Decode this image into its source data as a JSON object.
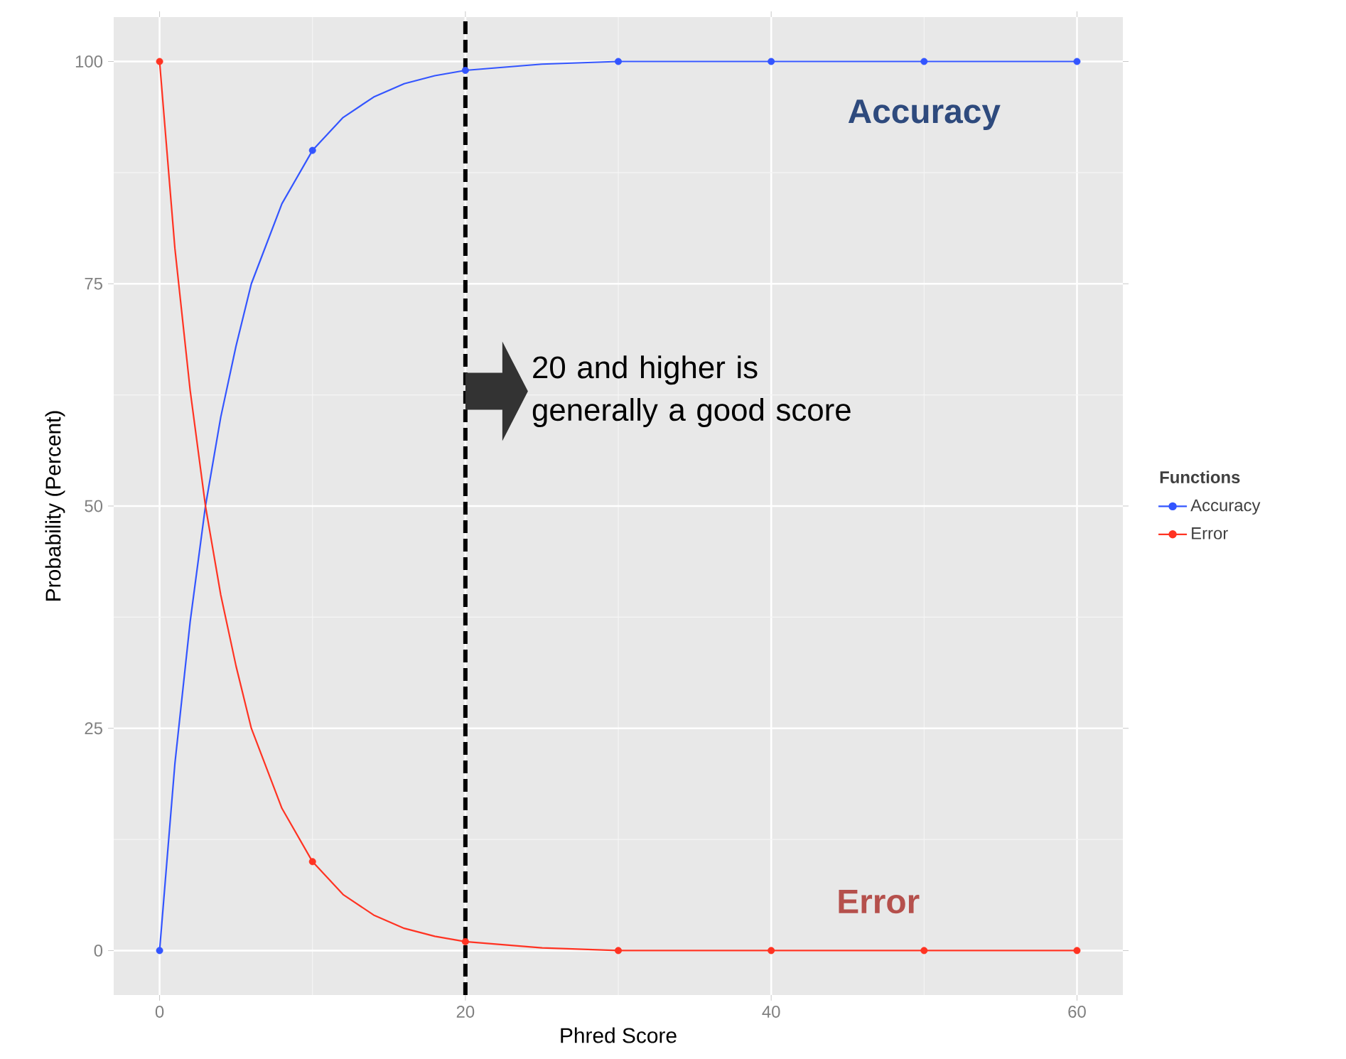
{
  "chart_data": {
    "type": "line",
    "xlabel": "Phred Score",
    "ylabel": "Probability (Percent)",
    "legend_title": "Functions",
    "legend": "right",
    "grid": true,
    "xlim": [
      -3,
      63
    ],
    "ylim": [
      -5,
      105
    ],
    "xticks": [
      0,
      20,
      40,
      60
    ],
    "yticks": [
      0,
      25,
      50,
      75,
      100
    ],
    "series": [
      {
        "name": "Accuracy",
        "color": "#3355ff",
        "marker": "none",
        "x": [
          0,
          1,
          2,
          3,
          4,
          5,
          6,
          8,
          10,
          12,
          14,
          16,
          18,
          20,
          25,
          30,
          40,
          50,
          60
        ],
        "values": [
          0,
          21,
          37,
          50,
          60,
          68,
          75,
          84,
          90,
          93.7,
          96,
          97.5,
          98.4,
          99,
          99.7,
          100,
          100,
          100,
          100
        ]
      },
      {
        "name": "Error",
        "color": "#ff3322",
        "marker": "none",
        "x": [
          0,
          1,
          2,
          3,
          4,
          5,
          6,
          8,
          10,
          12,
          14,
          16,
          18,
          20,
          25,
          30,
          40,
          50,
          60
        ],
        "values": [
          100,
          79,
          63,
          50,
          40,
          32,
          25,
          16,
          10,
          6.3,
          4,
          2.5,
          1.6,
          1,
          0.3,
          0,
          0,
          0,
          0
        ]
      },
      {
        "type": "scatter",
        "color": "#3355ff",
        "marker": "circle",
        "x": [
          0,
          10,
          20,
          30,
          40,
          50,
          60
        ],
        "values": [
          0,
          90,
          99,
          100,
          100,
          100,
          100
        ]
      },
      {
        "type": "scatter",
        "color": "#ff3322",
        "marker": "circle",
        "x": [
          0,
          10,
          20,
          30,
          40,
          50,
          60
        ],
        "values": [
          100,
          10,
          1,
          0,
          0,
          0,
          0
        ]
      }
    ],
    "ref_lines": [
      {
        "axis": "x",
        "value": 20,
        "color": "#000000",
        "line_style": "dashed"
      }
    ],
    "annotations": [
      "20 and higher is generally a good score",
      "Accuracy",
      "Error"
    ]
  }
}
